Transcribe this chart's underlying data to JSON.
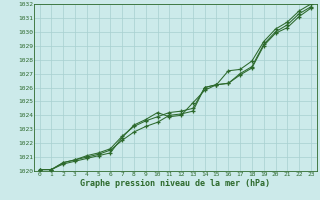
{
  "x": [
    0,
    1,
    2,
    3,
    4,
    5,
    6,
    7,
    8,
    9,
    10,
    11,
    12,
    13,
    14,
    15,
    16,
    17,
    18,
    19,
    20,
    21,
    22,
    23
  ],
  "line1": [
    1020.1,
    1020.1,
    1020.6,
    1020.8,
    1021.0,
    1021.2,
    1021.5,
    1022.2,
    1022.8,
    1023.2,
    1023.5,
    1024.0,
    1024.1,
    1024.3,
    1026.0,
    1026.2,
    1026.3,
    1026.9,
    1027.4,
    1029.0,
    1029.9,
    1030.3,
    1031.1,
    1031.7
  ],
  "line2": [
    1020.1,
    1020.1,
    1020.6,
    1020.8,
    1021.1,
    1021.3,
    1021.6,
    1022.5,
    1023.2,
    1023.6,
    1023.9,
    1024.2,
    1024.3,
    1024.5,
    1026.0,
    1026.2,
    1026.3,
    1027.0,
    1027.5,
    1029.1,
    1030.0,
    1030.5,
    1031.3,
    1031.8
  ],
  "line3": [
    1020.1,
    1020.1,
    1020.5,
    1020.7,
    1020.9,
    1021.1,
    1021.3,
    1022.4,
    1023.3,
    1023.7,
    1024.2,
    1023.9,
    1024.0,
    1024.9,
    1025.8,
    1026.2,
    1027.2,
    1027.3,
    1027.9,
    1029.3,
    1030.2,
    1030.7,
    1031.5,
    1032.0
  ],
  "xlabel": "Graphe pression niveau de la mer (hPa)",
  "ylim": [
    1020,
    1032
  ],
  "xlim": [
    -0.5,
    23.5
  ],
  "yticks": [
    1020,
    1021,
    1022,
    1023,
    1024,
    1025,
    1026,
    1027,
    1028,
    1029,
    1030,
    1031,
    1032
  ],
  "xticks": [
    0,
    1,
    2,
    3,
    4,
    5,
    6,
    7,
    8,
    9,
    10,
    11,
    12,
    13,
    14,
    15,
    16,
    17,
    18,
    19,
    20,
    21,
    22,
    23
  ],
  "line_color": "#2d6a2d",
  "bg_color": "#cceaea",
  "grid_color": "#a8d0d0"
}
